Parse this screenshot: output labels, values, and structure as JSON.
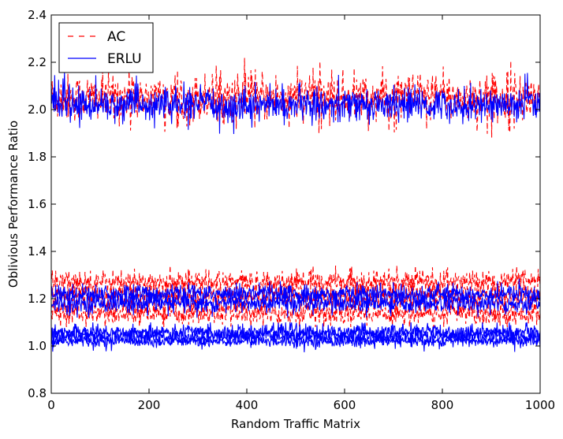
{
  "chart_data": {
    "type": "line",
    "title": "",
    "xlabel": "Random Traffic Matrix",
    "ylabel": "Oblivious Performance Ratio",
    "xlim": [
      0,
      1000
    ],
    "ylim": [
      0.8,
      2.4
    ],
    "x_ticks": [
      "0",
      "200",
      "400",
      "600",
      "800",
      "1000"
    ],
    "y_ticks": [
      "0.8",
      "1.0",
      "1.2",
      "1.4",
      "1.6",
      "1.8",
      "2.0",
      "2.2",
      "2.4"
    ],
    "grid": false,
    "legend": {
      "placement": "top-left"
    },
    "n_points": 1000,
    "series": [
      {
        "name": "AC",
        "style": "dashed",
        "color": "#ff0000",
        "bands": [
          {
            "mean": 2.05,
            "spread": 0.05,
            "min": 1.83,
            "max": 2.22
          },
          {
            "mean": 1.27,
            "spread": 0.025,
            "min": 1.2,
            "max": 1.34
          },
          {
            "mean": 1.21,
            "spread": 0.025,
            "min": 1.13,
            "max": 1.3
          },
          {
            "mean": 1.14,
            "spread": 0.025,
            "min": 1.08,
            "max": 1.22
          }
        ]
      },
      {
        "name": "ERLU",
        "style": "solid",
        "color": "#0000ff",
        "bands": [
          {
            "mean": 2.02,
            "spread": 0.035,
            "min": 1.85,
            "max": 2.16
          },
          {
            "mean": 1.22,
            "spread": 0.02,
            "min": 1.16,
            "max": 1.29
          },
          {
            "mean": 1.18,
            "spread": 0.02,
            "min": 1.12,
            "max": 1.25
          },
          {
            "mean": 1.06,
            "spread": 0.015,
            "min": 1.0,
            "max": 1.1
          },
          {
            "mean": 1.04,
            "spread": 0.015,
            "min": 0.97,
            "max": 1.09
          },
          {
            "mean": 1.02,
            "spread": 0.012,
            "min": 0.95,
            "max": 1.07
          }
        ]
      }
    ]
  }
}
